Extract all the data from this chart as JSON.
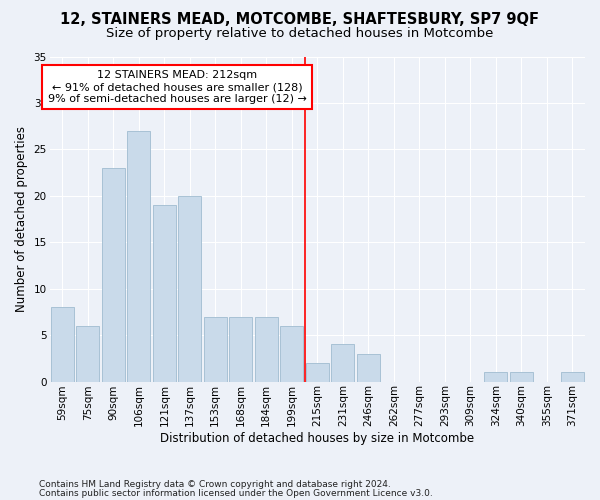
{
  "title": "12, STAINERS MEAD, MOTCOMBE, SHAFTESBURY, SP7 9QF",
  "subtitle": "Size of property relative to detached houses in Motcombe",
  "xlabel": "Distribution of detached houses by size in Motcombe",
  "ylabel": "Number of detached properties",
  "categories": [
    "59sqm",
    "75sqm",
    "90sqm",
    "106sqm",
    "121sqm",
    "137sqm",
    "153sqm",
    "168sqm",
    "184sqm",
    "199sqm",
    "215sqm",
    "231sqm",
    "246sqm",
    "262sqm",
    "277sqm",
    "293sqm",
    "309sqm",
    "324sqm",
    "340sqm",
    "355sqm",
    "371sqm"
  ],
  "values": [
    8,
    6,
    23,
    27,
    19,
    20,
    7,
    7,
    7,
    6,
    2,
    4,
    3,
    0,
    0,
    0,
    0,
    1,
    1,
    0,
    1
  ],
  "bar_color": "#c9daea",
  "bar_edgecolor": "#a0bcd0",
  "vline_color": "red",
  "vline_pos": 9.5,
  "annotation_text": "12 STAINERS MEAD: 212sqm\n← 91% of detached houses are smaller (128)\n9% of semi-detached houses are larger (12) →",
  "annotation_box_color": "white",
  "annotation_box_edgecolor": "red",
  "ylim": [
    0,
    35
  ],
  "yticks": [
    0,
    5,
    10,
    15,
    20,
    25,
    30,
    35
  ],
  "background_color": "#edf1f8",
  "grid_color": "white",
  "footer1": "Contains HM Land Registry data © Crown copyright and database right 2024.",
  "footer2": "Contains public sector information licensed under the Open Government Licence v3.0.",
  "title_fontsize": 10.5,
  "subtitle_fontsize": 9.5,
  "ylabel_fontsize": 8.5,
  "xlabel_fontsize": 8.5,
  "tick_fontsize": 7.5,
  "annotation_fontsize": 8,
  "footer_fontsize": 6.5
}
